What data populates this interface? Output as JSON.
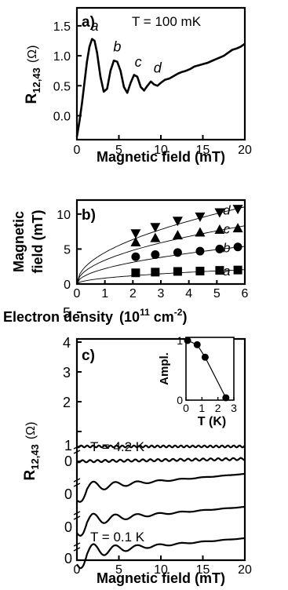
{
  "chart_data": [
    {
      "panel": "a)",
      "type": "line",
      "annotation": "T = 100 mK",
      "xlabel": "Magnetic field  (mT)",
      "ylabel": "R",
      "ylabel_sub": "12,43",
      "yunit": "(Ω)",
      "xlim": [
        0,
        20
      ],
      "ylim": [
        -0.4,
        1.8
      ],
      "xticks": [
        "0",
        "5",
        "10",
        "15",
        "20"
      ],
      "yticks": [
        "0.0",
        "0.5",
        "1.0",
        "1.5"
      ],
      "peak_labels": [
        {
          "text": "a",
          "x": 2.1,
          "y": 1.42
        },
        {
          "text": "b",
          "x": 4.8,
          "y": 1.07
        },
        {
          "text": "c",
          "x": 7.3,
          "y": 0.82
        },
        {
          "text": "d",
          "x": 9.6,
          "y": 0.72
        }
      ],
      "x": [
        0,
        0.3,
        0.6,
        0.9,
        1.2,
        1.5,
        1.8,
        2.1,
        2.4,
        2.8,
        3.2,
        3.6,
        4.0,
        4.4,
        4.8,
        5.2,
        5.6,
        6.0,
        6.4,
        6.8,
        7.2,
        7.6,
        8.0,
        8.4,
        8.8,
        9.2,
        9.6,
        10.0,
        10.5,
        11,
        11.5,
        12,
        12.5,
        13,
        13.5,
        14,
        14.5,
        15,
        15.5,
        16,
        16.5,
        17,
        17.5,
        18,
        18.5,
        19,
        19.5,
        20
      ],
      "y": [
        -0.35,
        -0.1,
        0.2,
        0.55,
        0.9,
        1.15,
        1.28,
        1.25,
        1.05,
        0.65,
        0.4,
        0.45,
        0.75,
        0.92,
        0.9,
        0.75,
        0.48,
        0.38,
        0.55,
        0.68,
        0.65,
        0.48,
        0.42,
        0.5,
        0.57,
        0.52,
        0.5,
        0.55,
        0.6,
        0.62,
        0.66,
        0.7,
        0.73,
        0.75,
        0.78,
        0.82,
        0.84,
        0.86,
        0.88,
        0.91,
        0.94,
        0.97,
        1.0,
        1.05,
        1.1,
        1.12,
        1.15,
        1.2
      ]
    },
    {
      "panel": "b)",
      "type": "scatter",
      "xlabel": "Electron density",
      "xunit": "(10",
      "xunit_exp": "11",
      "xunit_tail": " cm",
      "xunit_exp2": "-2",
      "xunit_close": ")",
      "ylabel_line1": "Magnetic",
      "ylabel_line2": "field  (mT)",
      "xlim": [
        0,
        6
      ],
      "ylim": [
        0,
        12
      ],
      "xticks": [
        "0",
        "1",
        "2",
        "3",
        "4",
        "5",
        "6"
      ],
      "yticks": [
        "0",
        "5",
        "10"
      ],
      "x": [
        2.1,
        2.8,
        3.6,
        4.4,
        5.1,
        5.75
      ],
      "series": [
        {
          "name": "a",
          "marker": "square",
          "values": [
            1.6,
            1.7,
            1.8,
            1.85,
            1.95,
            2.0
          ],
          "fit_coef": 0.84
        },
        {
          "name": "b",
          "marker": "circle",
          "values": [
            3.9,
            4.2,
            4.5,
            4.7,
            5.0,
            5.3
          ],
          "fit_coef": 2.2
        },
        {
          "name": "c",
          "marker": "triangle-up",
          "values": [
            6.0,
            6.6,
            7.0,
            7.4,
            7.8,
            8.0
          ],
          "fit_coef": 3.4
        },
        {
          "name": "d",
          "marker": "triangle-down",
          "values": [
            7.2,
            8.1,
            9.0,
            9.6,
            10.2,
            10.7
          ],
          "fit_coef": 4.5
        }
      ]
    },
    {
      "panel": "c)",
      "type": "line",
      "xlabel": "Magnetic field  (mT)",
      "ylabel": "R",
      "ylabel_sub": "12,43",
      "yunit": "(Ω)",
      "xlim": [
        0,
        20
      ],
      "xticks": [
        "0",
        "5",
        "10",
        "15",
        "20"
      ],
      "yticks": [
        "0",
        "1",
        "2",
        "3",
        "4",
        "5"
      ],
      "offset_labels": [
        "1",
        "0",
        "0",
        "0",
        "0"
      ],
      "label_top": "T = 4.2 K",
      "label_bottom": "T = 0.1 K",
      "inset": {
        "type": "line",
        "xlabel": "T  (K)",
        "ylabel": "Ampl.",
        "xlim": [
          0,
          3
        ],
        "ylim": [
          0,
          1
        ],
        "xticks": [
          "0",
          "1",
          "2",
          "3"
        ],
        "yticks": [
          "0",
          "1"
        ],
        "x": [
          0.1,
          0.7,
          1.2,
          2.5
        ],
        "y": [
          1.0,
          0.93,
          0.72,
          0.04
        ]
      },
      "series": [
        {
          "name": "T = 4.2 K",
          "x": [
            0,
            20
          ],
          "y": [
            0,
            0
          ]
        },
        {
          "name": "",
          "x": [
            0,
            20
          ],
          "y": [
            0,
            0
          ]
        },
        {
          "name": "",
          "x": [
            0,
            20
          ],
          "y": [
            0,
            0
          ]
        },
        {
          "name": "",
          "x": [
            0,
            20
          ],
          "y": [
            0,
            0
          ]
        },
        {
          "name": "T = 0.1 K",
          "x": [
            0,
            20
          ],
          "y": [
            0,
            0
          ]
        }
      ]
    }
  ]
}
